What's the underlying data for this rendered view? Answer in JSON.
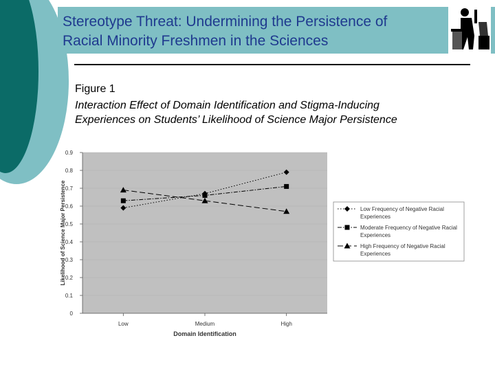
{
  "slide": {
    "title_line1": "Stereotype Threat: Undermining the Persistence of",
    "title_line2": "Racial Minority Freshmen in the Sciences",
    "figure_label": "Figure 1",
    "caption_line1": "Interaction Effect of Domain Identification and Stigma-Inducing",
    "caption_line2": "Experiences on Students’ Likelihood of Science Major Persistence"
  },
  "colors": {
    "accent_dark": "#0b6b67",
    "accent_light": "#7fbfc4",
    "title": "#1f3a8f",
    "plot_bg": "#c0c0c0"
  },
  "chart_data": {
    "type": "line",
    "categories": [
      "Low",
      "Medium",
      "High"
    ],
    "xlabel": "Domain Identification",
    "ylabel": "Likelihood of Science Major Persistence",
    "ylim": [
      0,
      0.9
    ],
    "yticks": [
      "0",
      "0.1",
      "0.2",
      "0.3",
      "0.4",
      "0.5",
      "0.6",
      "0.7",
      "0.8",
      "0.9"
    ],
    "series": [
      {
        "name": "Low Frequency of Negative Racial Experiences",
        "values": [
          0.59,
          0.67,
          0.79
        ],
        "marker": "diamond",
        "dash": "dotted"
      },
      {
        "name": "Moderate Frequency of Negative Racial Experiences",
        "values": [
          0.63,
          0.66,
          0.71
        ],
        "marker": "square",
        "dash": "dashdot"
      },
      {
        "name": "High Frequency of Negative Racial Experiences",
        "values": [
          0.69,
          0.63,
          0.57
        ],
        "marker": "triangle",
        "dash": "dashed"
      }
    ],
    "legend_position": "right"
  }
}
